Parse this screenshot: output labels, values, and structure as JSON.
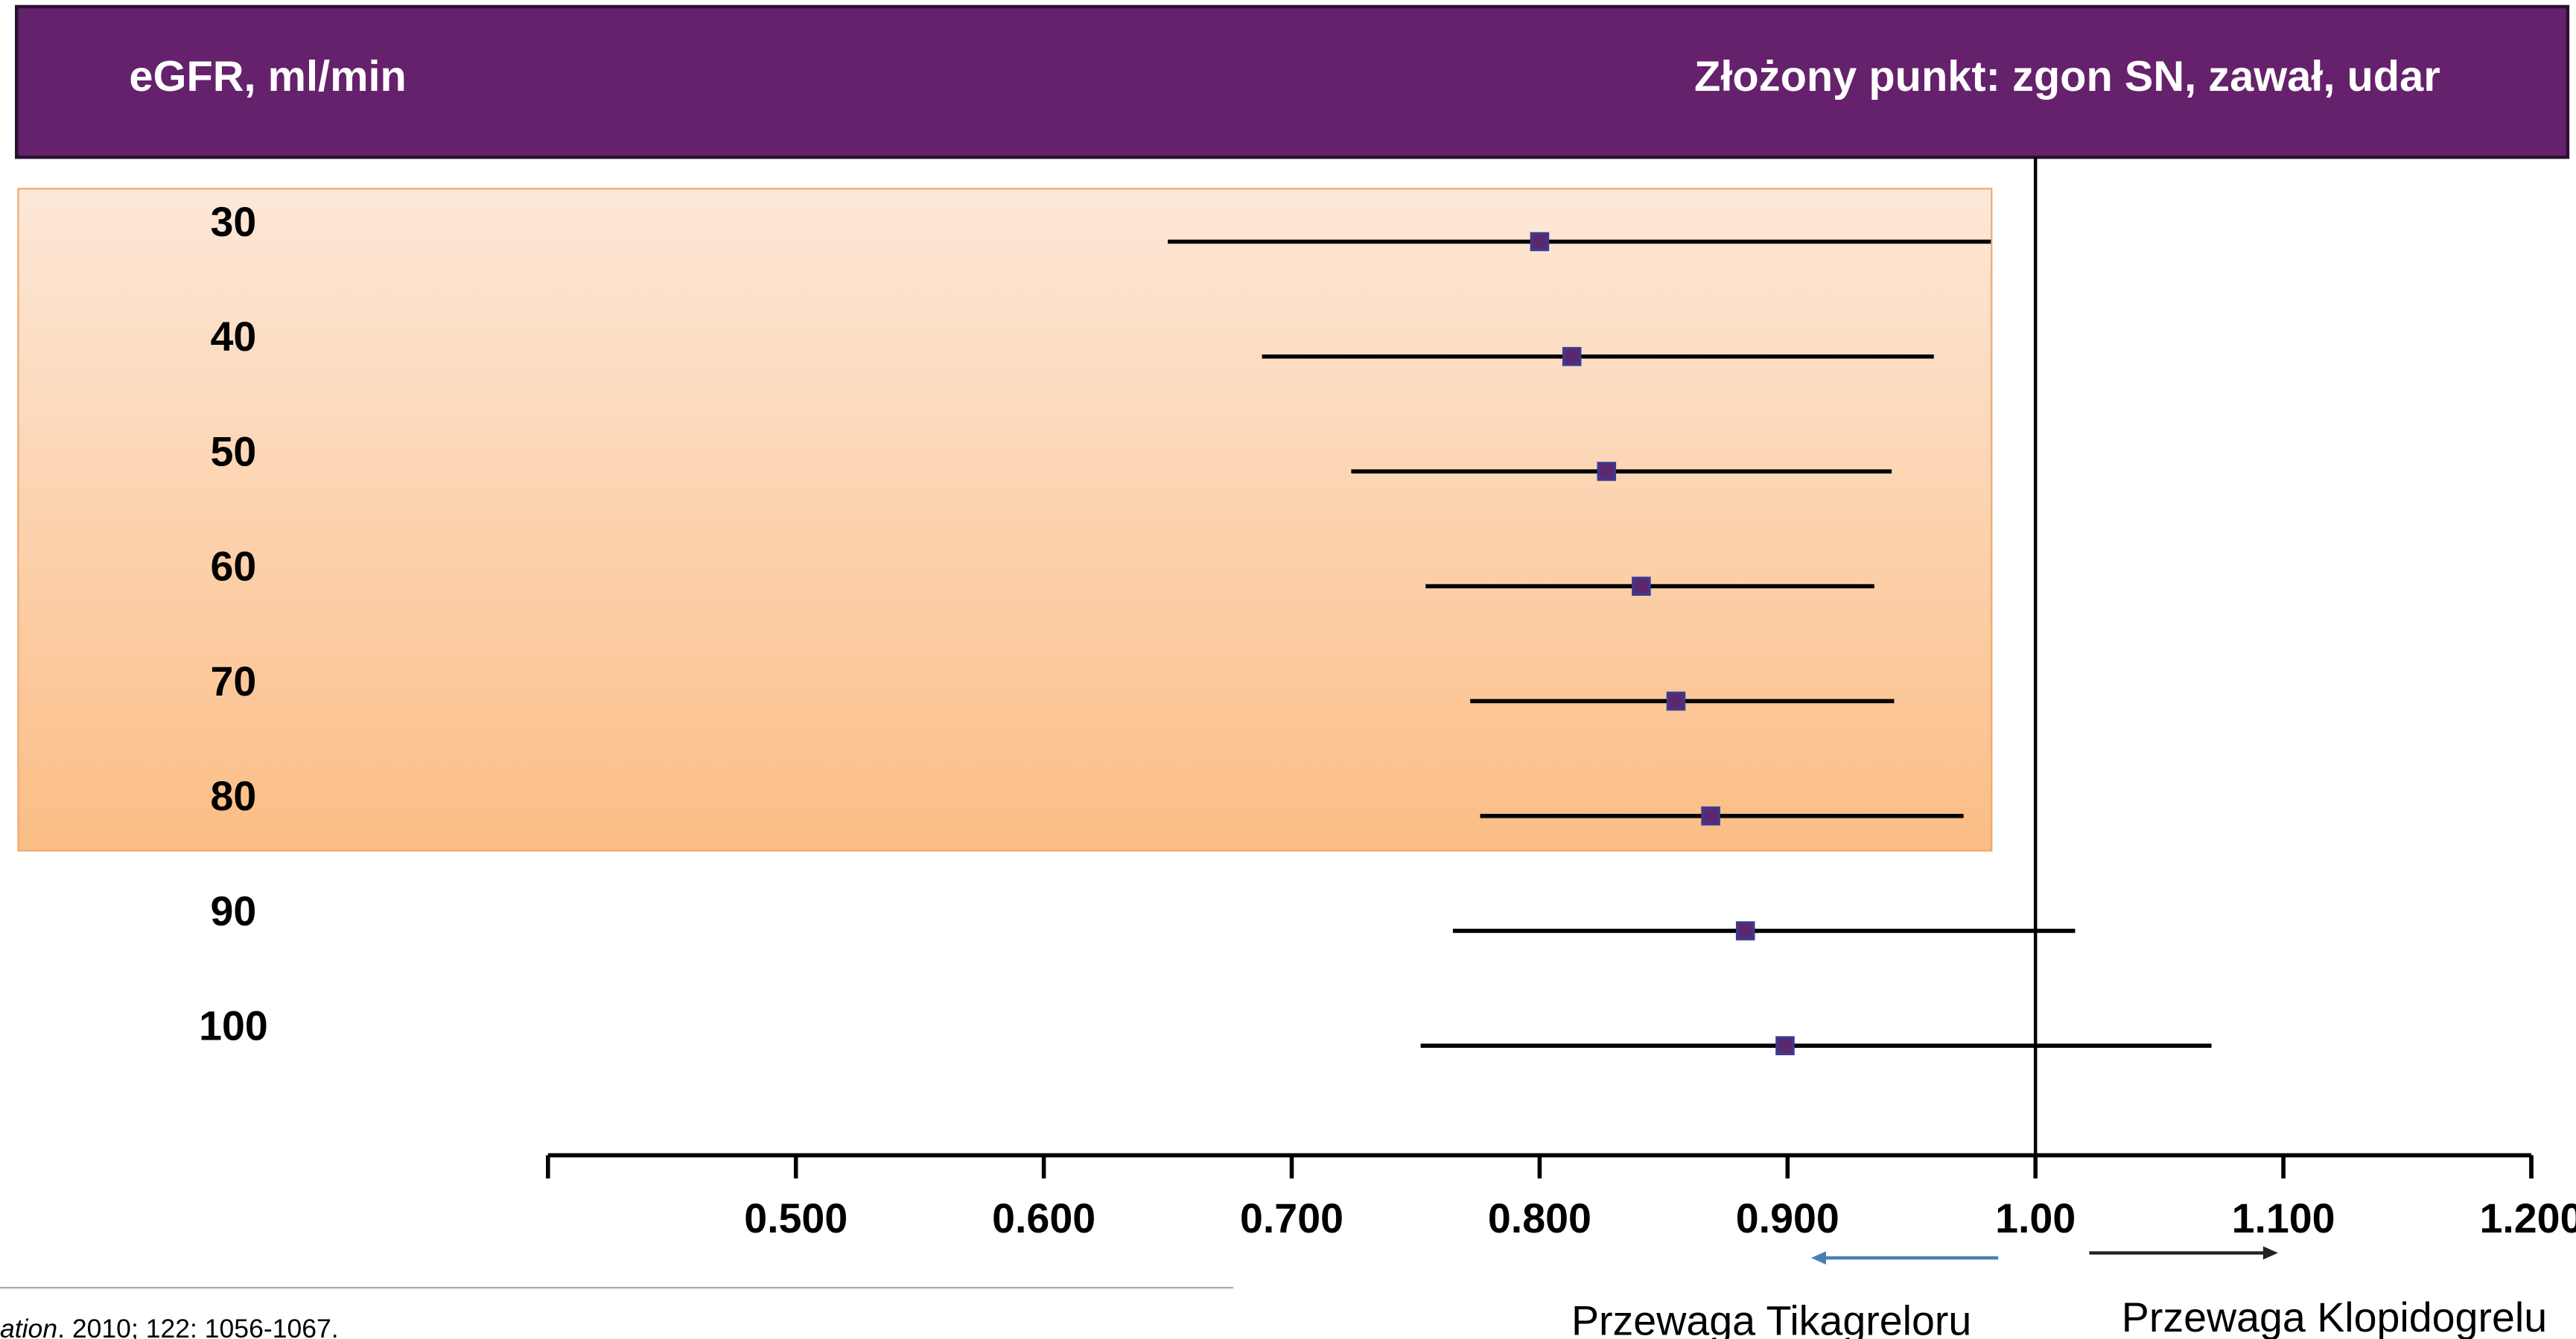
{
  "header": {
    "left": "eGFR, ml/min",
    "right": "Złożony punkt: zgon SN, zawał, udar"
  },
  "chart_data": {
    "type": "forest",
    "categories": [
      "30",
      "40",
      "50",
      "60",
      "70",
      "80",
      "90",
      "100"
    ],
    "values": [
      0.8,
      0.813,
      0.827,
      0.841,
      0.855,
      0.869,
      0.883,
      0.899
    ],
    "ci_low": [
      0.65,
      0.688,
      0.724,
      0.754,
      0.772,
      0.776,
      0.765,
      0.752
    ],
    "ci_high": [
      0.982,
      0.959,
      0.942,
      0.935,
      0.943,
      0.971,
      1.016,
      1.071
    ],
    "xlim": [
      0.4,
      1.2
    ],
    "xticks": [
      {
        "value": 0.5,
        "label": "0.500"
      },
      {
        "value": 0.6,
        "label": "0.600"
      },
      {
        "value": 0.7,
        "label": "0.700"
      },
      {
        "value": 0.8,
        "label": "0.800"
      },
      {
        "value": 0.9,
        "label": "0.900"
      },
      {
        "value": 1.0,
        "label": "1.00"
      },
      {
        "value": 1.1,
        "label": "1.100"
      },
      {
        "value": 1.2,
        "label": "1.200"
      }
    ],
    "reference": 1.0,
    "marker_color": "#5b2870",
    "line_color": "#000000"
  },
  "annotations": {
    "left": "Przewaga Tikagreloru",
    "right": "Przewaga Klopidogrelu"
  },
  "citation": {
    "journal_fragment": "ation",
    "details": ". 2010; 122: 1056-1067."
  }
}
